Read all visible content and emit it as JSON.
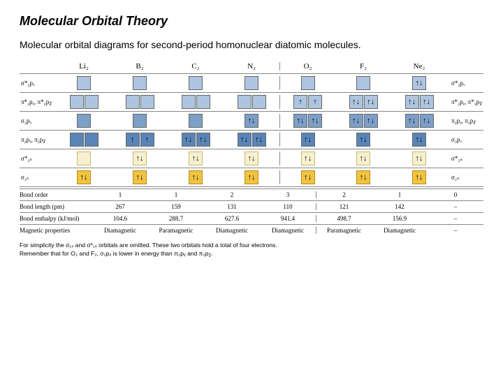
{
  "title": "Molecular Orbital Theory",
  "subtitle": "Molecular orbital diagrams for second-period homonuclear diatomic molecules.",
  "molecules": [
    "Li₂",
    "B₂",
    "C₂",
    "N₂",
    "O₂",
    "F₂",
    "Ne₂"
  ],
  "left_labels": [
    "σ*₂pₓ",
    "π*₂pᵧ, π*₂p𝓏",
    "σ₂pₓ",
    "π₂pᵧ, π₂p𝓏",
    "σ*₂ₛ",
    "σ₂ₛ"
  ],
  "right_labels": [
    "σ*₂pₓ",
    "π*₂pᵧ, π*₂p𝓏",
    "π₂pᵧ, π₂p𝓏",
    "σ₂pₓ",
    "σ*₂ₛ",
    "σ₂ₛ"
  ],
  "orbital_rows": [
    {
      "type": "single",
      "color": "blue-light",
      "fills": [
        "",
        "",
        "",
        "",
        "",
        "",
        "↑↓"
      ]
    },
    {
      "type": "double",
      "color": "blue-light",
      "fills": [
        [
          "",
          ""
        ],
        [
          "",
          ""
        ],
        [
          "",
          ""
        ],
        [
          "",
          ""
        ],
        [
          "↑",
          "↑"
        ],
        [
          "↑↓",
          "↑↓"
        ],
        [
          "↑↓",
          "↑↓"
        ]
      ]
    },
    {
      "type": "single",
      "color": "blue-med",
      "fills": [
        "",
        "",
        "",
        "↑↓",
        "↑↓",
        "↑↓",
        "↑↓"
      ],
      "right_override": "double",
      "right_color": "blue-med",
      "right_start": 4,
      "right_fills": [
        [
          "↑↓",
          "↑↓"
        ],
        [
          "↑↓",
          "↑↓"
        ],
        [
          "↑↓",
          "↑↓"
        ]
      ]
    },
    {
      "type": "double",
      "color": "blue-dark",
      "fills": [
        [
          "",
          ""
        ],
        [
          "↑",
          "↑"
        ],
        [
          "↑↓",
          "↑↓"
        ],
        [
          "↑↓",
          "↑↓"
        ],
        [
          "↑↓",
          ""
        ],
        [
          "↑↓",
          ""
        ],
        [
          "↑↓",
          ""
        ]
      ],
      "right_override": "single",
      "right_color": "blue-dark",
      "right_start": 4,
      "right_fills": [
        "↑↓",
        "↑↓",
        "↑↓"
      ]
    },
    {
      "type": "single",
      "color": "cream",
      "fills": [
        "",
        "↑↓",
        "↑↓",
        "↑↓",
        "↑↓",
        "↑↓",
        "↑↓"
      ]
    },
    {
      "type": "single",
      "color": "gold",
      "fills": [
        "↑↓",
        "↑↓",
        "↑↓",
        "↑↓",
        "↑↓",
        "↑↓",
        "↑↓"
      ]
    }
  ],
  "properties": [
    {
      "label": "Bond order",
      "values": [
        "1",
        "1",
        "2",
        "3",
        "2",
        "1",
        "0"
      ]
    },
    {
      "label": "Bond length (pm)",
      "values": [
        "267",
        "159",
        "131",
        "110",
        "121",
        "142",
        "–"
      ]
    },
    {
      "label": "Bond enthalpy (kJ/mol)",
      "values": [
        "104.6",
        "288.7",
        "627.6",
        "941.4",
        "498.7",
        "156.9",
        "–"
      ]
    },
    {
      "label": "Magnetic properties",
      "values": [
        "Diamagnetic",
        "Paramagnetic",
        "Diamagnetic",
        "Diamagnetic",
        "Paramagnetic",
        "Diamagnetic",
        "–"
      ]
    }
  ],
  "footnote1": "For simplicity the σ₁ₛ and σ*₁ₛ orbitals are omitted.  These two orbitals hold a total of four electrons.",
  "footnote2": "Remember that for O₂ and F₂, σ₂pₓ is lower in energy than π₂pᵧ and π₂p𝓏.",
  "colors": {
    "blue_light": "#aec5e0",
    "blue_med": "#7ca0c8",
    "blue_dark": "#5a85b8",
    "cream": "#f6f0d0",
    "gold": "#f2c341",
    "line": "#888888"
  }
}
